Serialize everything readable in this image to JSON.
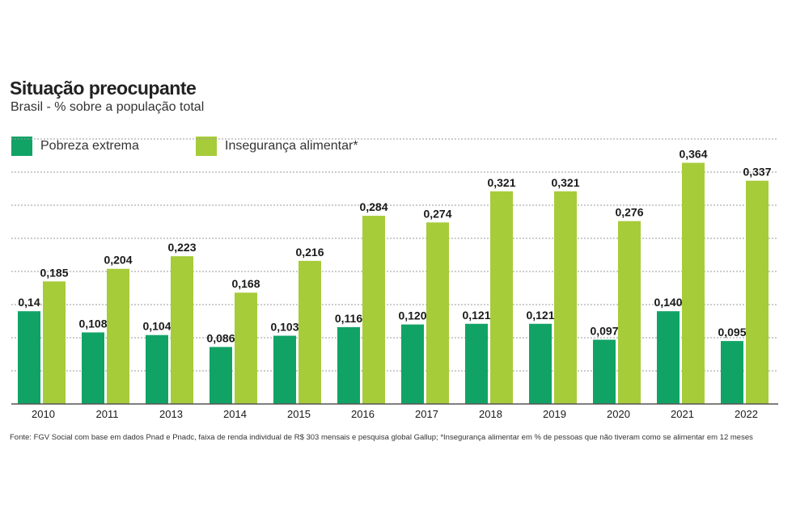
{
  "title": "Situação preocupante",
  "subtitle": "Brasil - % sobre a população total",
  "legend": [
    {
      "label": "Pobreza extrema",
      "color": "#11a365"
    },
    {
      "label": "Insegurança alimentar*",
      "color": "#a6cc3a"
    }
  ],
  "source": "Fonte: FGV Social com base em dados Pnad e Pnadc, faixa de renda individual de R$ 303 mensais e pesquisa global Gallup; *Insegurança alimentar em % de pessoas que não tiveram como se alimentar em 12 meses",
  "chart_data": {
    "type": "bar",
    "categories": [
      "2010",
      "2011",
      "2013",
      "2014",
      "2015",
      "2016",
      "2017",
      "2018",
      "2019",
      "2020",
      "2021",
      "2022"
    ],
    "series": [
      {
        "name": "Pobreza extrema",
        "color": "#11a365",
        "values": [
          0.14,
          0.108,
          0.104,
          0.086,
          0.103,
          0.116,
          0.12,
          0.121,
          0.121,
          0.097,
          0.14,
          0.095
        ],
        "labels": [
          "0,14",
          "0,108",
          "0,104",
          "0,086",
          "0,103",
          "0,116",
          "0,120",
          "0,121",
          "0,121",
          "0,097",
          "0,140",
          "0,095"
        ]
      },
      {
        "name": "Insegurança alimentar*",
        "color": "#a6cc3a",
        "values": [
          0.185,
          0.204,
          0.223,
          0.168,
          0.216,
          0.284,
          0.274,
          0.321,
          0.321,
          0.276,
          0.364,
          0.337
        ],
        "labels": [
          "0,185",
          "0,204",
          "0,223",
          "0,168",
          "0,216",
          "0,284",
          "0,274",
          "0,321",
          "0,321",
          "0,276",
          "0,364",
          "0,337"
        ]
      }
    ],
    "ylim": [
      0,
      0.4
    ],
    "grid": true,
    "legend_position": "top-left"
  }
}
